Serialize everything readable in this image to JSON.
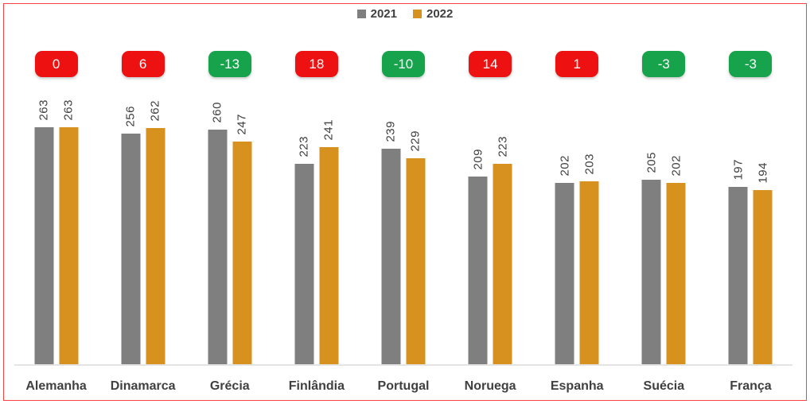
{
  "chart_data": {
    "type": "bar",
    "title": "",
    "categories": [
      "Alemanha",
      "Dinamarca",
      "Grécia",
      "Finlândia",
      "Portugal",
      "Noruega",
      "Espanha",
      "Suécia",
      "França"
    ],
    "series": [
      {
        "name": "2021",
        "color": "#7f7f7f",
        "values": [
          263,
          256,
          260,
          223,
          239,
          209,
          202,
          205,
          197
        ]
      },
      {
        "name": "2022",
        "color": "#d6911f",
        "values": [
          263,
          262,
          247,
          241,
          229,
          223,
          203,
          202,
          194
        ]
      }
    ],
    "deltas": [
      {
        "label": "0",
        "color": "red"
      },
      {
        "label": "6",
        "color": "red"
      },
      {
        "label": "-13",
        "color": "green"
      },
      {
        "label": "18",
        "color": "red"
      },
      {
        "label": "-10",
        "color": "green"
      },
      {
        "label": "14",
        "color": "red"
      },
      {
        "label": "1",
        "color": "red"
      },
      {
        "label": "-3",
        "color": "green"
      },
      {
        "label": "-3",
        "color": "green"
      }
    ],
    "ylim": [
      0,
      263
    ],
    "grid": false,
    "legend_position": "top"
  },
  "colors": {
    "badge_red": "#ee1111",
    "badge_green": "#17a34b",
    "frame_border": "#f94343",
    "axis_line": "#e4e4e4",
    "label_text": "#3f3f3f"
  }
}
